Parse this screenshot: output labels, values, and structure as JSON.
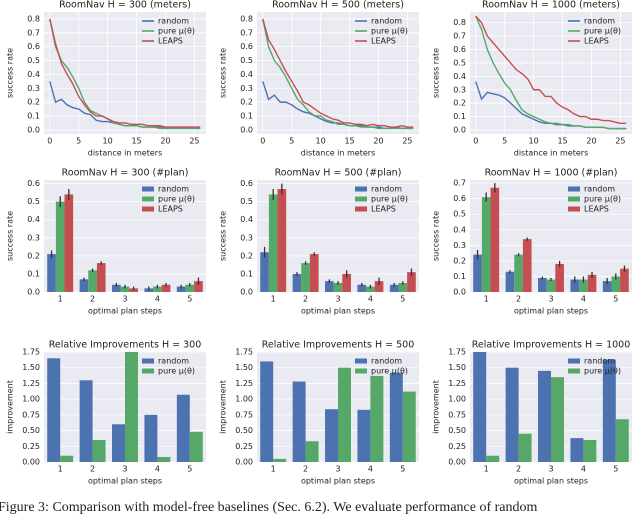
{
  "chart_data": [
    {
      "type": "line",
      "title": "RoomNav H = 300 (meters)",
      "xlabel": "distance in meters",
      "ylabel": "success rate",
      "legend": "upper right",
      "x": [
        0,
        1,
        2,
        3,
        4,
        5,
        6,
        7,
        8,
        9,
        10,
        11,
        12,
        13,
        14,
        15,
        16,
        17,
        18,
        19,
        20,
        21,
        22,
        23,
        24,
        25,
        26
      ],
      "xlim": [
        -1,
        27
      ],
      "xticks": [
        0,
        5,
        10,
        15,
        20,
        25
      ],
      "ylim": [
        -0.03,
        0.85
      ],
      "yticks": [
        {
          "value": 0,
          "label": "0.0"
        },
        0.1,
        0.2,
        0.3,
        0.4,
        0.5,
        0.6,
        0.7,
        0.8
      ],
      "series": [
        {
          "name": "random",
          "color": "#4c72b0",
          "values": [
            0.35,
            0.2,
            0.22,
            0.18,
            0.16,
            0.15,
            0.12,
            0.11,
            0.07,
            0.06,
            0.06,
            0.05,
            0.04,
            0.03,
            0.03,
            0.03,
            0.02,
            0.02,
            0.02,
            0.02,
            0.01,
            0.01,
            0.01,
            0.02,
            0.01,
            0.01,
            0.01
          ]
        },
        {
          "name": "pure μ(θ)",
          "color": "#55a868",
          "values": [
            0.8,
            0.6,
            0.5,
            0.45,
            0.38,
            0.3,
            0.2,
            0.14,
            0.12,
            0.1,
            0.08,
            0.05,
            0.04,
            0.03,
            0.03,
            0.03,
            0.02,
            0.02,
            0.02,
            0.01,
            0.01,
            0.01,
            0.01,
            0.01,
            0.01,
            0.01,
            0.01
          ]
        },
        {
          "name": "LEAPS",
          "color": "#c44e52",
          "values": [
            0.8,
            0.62,
            0.48,
            0.4,
            0.33,
            0.24,
            0.18,
            0.13,
            0.1,
            0.1,
            0.08,
            0.06,
            0.05,
            0.05,
            0.04,
            0.04,
            0.04,
            0.03,
            0.03,
            0.03,
            0.02,
            0.02,
            0.02,
            0.02,
            0.02,
            0.02,
            0.02
          ]
        }
      ]
    },
    {
      "type": "line",
      "title": "RoomNav H = 500 (meters)",
      "xlabel": "distance in meters",
      "ylabel": "success rate",
      "legend": "upper right",
      "x": [
        0,
        1,
        2,
        3,
        4,
        5,
        6,
        7,
        8,
        9,
        10,
        11,
        12,
        13,
        14,
        15,
        16,
        17,
        18,
        19,
        20,
        21,
        22,
        23,
        24,
        25,
        26
      ],
      "xlim": [
        -1,
        27
      ],
      "xticks": [
        0,
        5,
        10,
        15,
        20,
        25
      ],
      "ylim": [
        -0.03,
        0.85
      ],
      "yticks": [
        {
          "value": 0,
          "label": "0.0"
        },
        0.1,
        0.2,
        0.3,
        0.4,
        0.5,
        0.6,
        0.7,
        0.8
      ],
      "series": [
        {
          "name": "random",
          "color": "#4c72b0",
          "values": [
            0.35,
            0.22,
            0.25,
            0.2,
            0.2,
            0.18,
            0.15,
            0.13,
            0.12,
            0.1,
            0.08,
            0.06,
            0.05,
            0.05,
            0.04,
            0.03,
            0.03,
            0.03,
            0.02,
            0.02,
            0.02,
            0.01,
            0.01,
            0.02,
            0.01,
            0.01,
            0.01
          ]
        },
        {
          "name": "pure μ(θ)",
          "color": "#55a868",
          "values": [
            0.8,
            0.6,
            0.5,
            0.45,
            0.38,
            0.3,
            0.22,
            0.18,
            0.13,
            0.1,
            0.1,
            0.07,
            0.06,
            0.04,
            0.04,
            0.03,
            0.03,
            0.02,
            0.02,
            0.02,
            0.01,
            0.01,
            0.01,
            0.01,
            0.01,
            0.01,
            0.01
          ]
        },
        {
          "name": "LEAPS",
          "color": "#c44e52",
          "values": [
            0.8,
            0.65,
            0.58,
            0.5,
            0.42,
            0.35,
            0.28,
            0.2,
            0.18,
            0.15,
            0.12,
            0.1,
            0.08,
            0.07,
            0.05,
            0.05,
            0.04,
            0.04,
            0.03,
            0.04,
            0.03,
            0.03,
            0.02,
            0.02,
            0.03,
            0.02,
            0.02
          ]
        }
      ]
    },
    {
      "type": "line",
      "title": "RoomNav H = 1000 (meters)",
      "xlabel": "distance in meters",
      "ylabel": "success rate",
      "legend": "upper right",
      "x": [
        0,
        1,
        2,
        3,
        4,
        5,
        6,
        7,
        8,
        9,
        10,
        11,
        12,
        13,
        14,
        15,
        16,
        17,
        18,
        19,
        20,
        21,
        22,
        23,
        24,
        25,
        26
      ],
      "xlim": [
        -1,
        27
      ],
      "xticks": [
        0,
        5,
        10,
        15,
        20,
        25
      ],
      "ylim": [
        -0.03,
        0.88
      ],
      "yticks": [
        {
          "value": 0,
          "label": "0.0"
        },
        0.1,
        0.2,
        0.3,
        0.4,
        0.5,
        0.6,
        0.7,
        0.8
      ],
      "series": [
        {
          "name": "random",
          "color": "#4c72b0",
          "values": [
            0.36,
            0.23,
            0.28,
            0.27,
            0.26,
            0.24,
            0.2,
            0.16,
            0.12,
            0.1,
            0.08,
            0.06,
            0.05,
            0.05,
            0.04,
            0.04,
            0.03,
            0.03,
            0.03,
            0.02,
            0.02,
            0.02,
            0.02,
            0.01,
            0.01,
            0.01,
            0.01
          ]
        },
        {
          "name": "pure μ(θ)",
          "color": "#55a868",
          "values": [
            0.85,
            0.75,
            0.6,
            0.5,
            0.42,
            0.35,
            0.3,
            0.22,
            0.15,
            0.12,
            0.1,
            0.08,
            0.06,
            0.05,
            0.05,
            0.04,
            0.04,
            0.03,
            0.03,
            0.02,
            0.02,
            0.02,
            0.02,
            0.01,
            0.01,
            0.01,
            0.01
          ]
        },
        {
          "name": "LEAPS",
          "color": "#c44e52",
          "values": [
            0.85,
            0.8,
            0.7,
            0.65,
            0.6,
            0.55,
            0.5,
            0.45,
            0.42,
            0.38,
            0.3,
            0.3,
            0.25,
            0.25,
            0.2,
            0.17,
            0.15,
            0.12,
            0.1,
            0.1,
            0.08,
            0.08,
            0.07,
            0.07,
            0.06,
            0.05,
            0.05
          ]
        }
      ]
    },
    {
      "type": "bar",
      "title": "RoomNav H = 300 (#plan)",
      "xlabel": "optimal plan steps",
      "ylabel": "success rate",
      "legend": "upper right",
      "categories": [
        "1",
        "2",
        "3",
        "4",
        "5"
      ],
      "ylim": [
        0,
        0.62
      ],
      "yticks": [
        {
          "value": 0,
          "label": "0.0"
        },
        0.1,
        0.2,
        0.3,
        0.4,
        0.5,
        0.6
      ],
      "series": [
        {
          "name": "random",
          "color": "#4c72b0",
          "values": [
            0.21,
            0.07,
            0.04,
            0.02,
            0.03
          ],
          "errors": [
            0.02,
            0.01,
            0.01,
            0.01,
            0.01
          ]
        },
        {
          "name": "pure μ(θ)",
          "color": "#55a868",
          "values": [
            0.5,
            0.12,
            0.03,
            0.03,
            0.04
          ],
          "errors": [
            0.03,
            0.01,
            0.01,
            0.01,
            0.01
          ]
        },
        {
          "name": "LEAPS",
          "color": "#c44e52",
          "values": [
            0.54,
            0.16,
            0.02,
            0.04,
            0.06
          ],
          "errors": [
            0.03,
            0.01,
            0.01,
            0.01,
            0.02
          ]
        }
      ]
    },
    {
      "type": "bar",
      "title": "RoomNav H = 500 (#plan)",
      "xlabel": "optimal plan steps",
      "ylabel": "success rate",
      "legend": "upper right",
      "categories": [
        "1",
        "2",
        "3",
        "4",
        "5"
      ],
      "ylim": [
        0,
        0.62
      ],
      "yticks": [
        {
          "value": 0,
          "label": "0.0"
        },
        0.1,
        0.2,
        0.3,
        0.4,
        0.5,
        0.6
      ],
      "series": [
        {
          "name": "random",
          "color": "#4c72b0",
          "values": [
            0.22,
            0.1,
            0.06,
            0.04,
            0.04
          ],
          "errors": [
            0.03,
            0.01,
            0.01,
            0.01,
            0.01
          ]
        },
        {
          "name": "pure μ(θ)",
          "color": "#55a868",
          "values": [
            0.54,
            0.16,
            0.05,
            0.03,
            0.05
          ],
          "errors": [
            0.03,
            0.01,
            0.01,
            0.01,
            0.01
          ]
        },
        {
          "name": "LEAPS",
          "color": "#c44e52",
          "values": [
            0.57,
            0.21,
            0.1,
            0.06,
            0.11
          ],
          "errors": [
            0.03,
            0.01,
            0.02,
            0.02,
            0.02
          ]
        }
      ]
    },
    {
      "type": "bar",
      "title": "RoomNav H = 1000 (#plan)",
      "xlabel": "optimal plan steps",
      "ylabel": "success rate",
      "legend": "upper right",
      "categories": [
        "1",
        "2",
        "3",
        "4",
        "5"
      ],
      "ylim": [
        0,
        0.72
      ],
      "yticks": [
        {
          "value": 0,
          "label": "0.0"
        },
        0.1,
        0.2,
        0.3,
        0.4,
        0.5,
        0.6,
        0.7
      ],
      "series": [
        {
          "name": "random",
          "color": "#4c72b0",
          "values": [
            0.24,
            0.13,
            0.09,
            0.08,
            0.07
          ],
          "errors": [
            0.03,
            0.01,
            0.01,
            0.02,
            0.02
          ]
        },
        {
          "name": "pure μ(θ)",
          "color": "#55a868",
          "values": [
            0.61,
            0.24,
            0.08,
            0.08,
            0.1
          ],
          "errors": [
            0.03,
            0.01,
            0.01,
            0.02,
            0.02
          ]
        },
        {
          "name": "LEAPS",
          "color": "#c44e52",
          "values": [
            0.67,
            0.34,
            0.18,
            0.11,
            0.15
          ],
          "errors": [
            0.03,
            0.01,
            0.02,
            0.02,
            0.02
          ]
        }
      ]
    },
    {
      "type": "bar",
      "title": "Relative Improvements H = 300",
      "xlabel": "optimal plan steps",
      "ylabel": "improvement",
      "legend": "upper right",
      "categories": [
        "1",
        "2",
        "3",
        "4",
        "5"
      ],
      "ylim": [
        0,
        1.75
      ],
      "yticks": [
        {
          "value": 0,
          "label": "0.00"
        },
        0.25,
        {
          "value": 0.5,
          "label": "0.50"
        },
        0.75,
        {
          "value": 1,
          "label": "1.00"
        },
        1.25,
        {
          "value": 1.5,
          "label": "1.50"
        },
        1.75
      ],
      "series": [
        {
          "name": "random",
          "color": "#4c72b0",
          "values": [
            1.65,
            1.3,
            0.6,
            0.75,
            1.07
          ]
        },
        {
          "name": "pure μ(θ)",
          "color": "#55a868",
          "values": [
            0.1,
            0.35,
            1.75,
            0.08,
            0.48
          ]
        }
      ]
    },
    {
      "type": "bar",
      "title": "Relative Improvements H = 500",
      "xlabel": "optimal plan steps",
      "ylabel": "improvement",
      "legend": "upper right",
      "categories": [
        "1",
        "2",
        "3",
        "4",
        "5"
      ],
      "ylim": [
        0,
        1.75
      ],
      "yticks": [
        {
          "value": 0,
          "label": "0.00"
        },
        0.25,
        {
          "value": 0.5,
          "label": "0.50"
        },
        0.75,
        {
          "value": 1,
          "label": "1.00"
        },
        1.25,
        {
          "value": 1.5,
          "label": "1.50"
        },
        1.75
      ],
      "series": [
        {
          "name": "random",
          "color": "#4c72b0",
          "values": [
            1.6,
            1.28,
            0.84,
            0.83,
            1.42
          ]
        },
        {
          "name": "pure μ(θ)",
          "color": "#55a868",
          "values": [
            0.05,
            0.33,
            1.5,
            1.37,
            1.12
          ]
        }
      ]
    },
    {
      "type": "bar",
      "title": "Relative Improvements H = 1000",
      "xlabel": "optimal plan steps",
      "ylabel": "improvement",
      "legend": "upper right",
      "categories": [
        "1",
        "2",
        "3",
        "4",
        "5"
      ],
      "ylim": [
        0,
        1.75
      ],
      "yticks": [
        {
          "value": 0,
          "label": "0.00"
        },
        0.25,
        {
          "value": 0.5,
          "label": "0.50"
        },
        0.75,
        {
          "value": 1,
          "label": "1.00"
        },
        1.25,
        {
          "value": 1.5,
          "label": "1.50"
        },
        1.75
      ],
      "series": [
        {
          "name": "random",
          "color": "#4c72b0",
          "values": [
            1.75,
            1.5,
            1.45,
            0.38,
            1.63
          ]
        },
        {
          "name": "pure μ(θ)",
          "color": "#55a868",
          "values": [
            0.1,
            0.45,
            1.35,
            0.35,
            0.68
          ]
        }
      ]
    }
  ],
  "caption": "Figure 3: Comparison with model-free baselines (Sec. 6.2). We evaluate performance of random"
}
